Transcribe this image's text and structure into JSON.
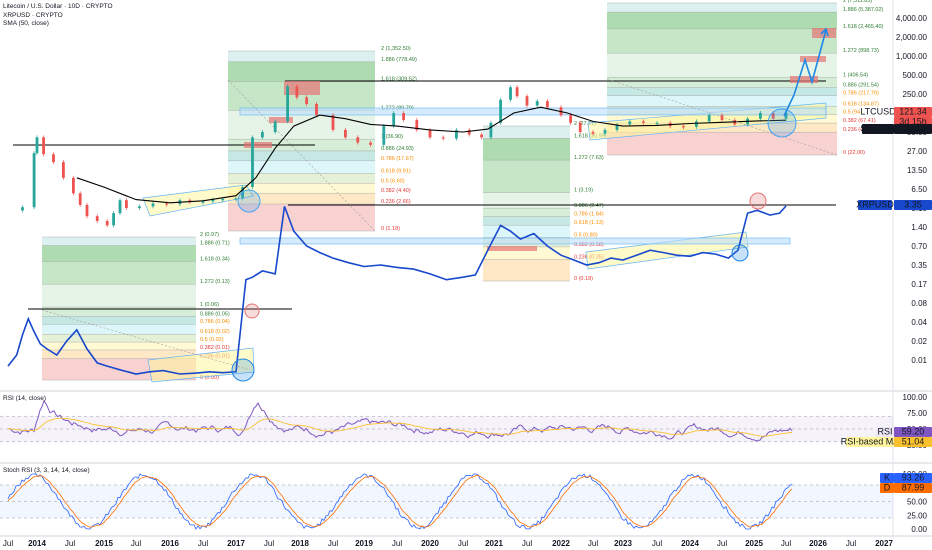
{
  "header": {
    "title": "Litecoin / U.S. Dollar · 10D · CRYPTO",
    "overlay": "XRPUSD · CRYPTO",
    "indicator": "SMA (50, close)"
  },
  "colors": {
    "ltc": "#131722",
    "xrp": "#1848cc",
    "sma": "#000000",
    "up": "#26a69a",
    "down": "#ef5350",
    "rsi": "#7e57c2",
    "stoch_k": "#2962ff",
    "stoch_d": "#ff6d00"
  },
  "chart_data": [
    {
      "type": "line",
      "name": "main-price",
      "x_ticks": [
        "Jul",
        "2014",
        "Jul",
        "2015",
        "Jul",
        "2016",
        "Jul",
        "2017",
        "Jul",
        "2018",
        "Jul",
        "2019",
        "Jul",
        "2020",
        "Jul",
        "2021",
        "Jul",
        "2022",
        "Jul",
        "2023",
        "Jul",
        "2024",
        "Jul",
        "2025",
        "Jul",
        "2026",
        "Jul",
        "2027"
      ],
      "y_ticks": [
        "4,000.00",
        "2,000.00",
        "1,000.00",
        "500.00",
        "250.00",
        "120.00",
        "55.00",
        "27.00",
        "13.50",
        "6.50",
        "3.10",
        "1.40",
        "0.70",
        "0.35",
        "0.17",
        "0.08",
        "0.04",
        "0.02",
        "0.01"
      ],
      "scale": "log",
      "series": [
        {
          "name": "LTCUSD",
          "last_label": "LTCUSD",
          "last_value": "121.34",
          "countdown": "3d 15h"
        },
        {
          "name": "SMA:MA",
          "last_label": "SMA:MA",
          "last_value": "89.32"
        },
        {
          "name": "XRPUSD",
          "last_label": "XRPUSD",
          "last_value": "3.35"
        }
      ],
      "fib_sets": [
        {
          "levels": [
            {
              "label": "2 (0.97)"
            },
            {
              "label": "1.886 (0.71)"
            },
            {
              "label": "1.618 (0.34)"
            },
            {
              "label": "1.272 (0.13)"
            },
            {
              "label": "1 (0.06)"
            },
            {
              "label": "0.886 (0.05)"
            },
            {
              "label": "0.786 (0.04)"
            },
            {
              "label": "0.618 (0.02)"
            },
            {
              "label": "0.5 (0.02)"
            },
            {
              "label": "0.382 (0.01)"
            },
            {
              "label": "0.236 (0.01)"
            },
            {
              "label": "0 (0.00)"
            }
          ]
        },
        {
          "levels": [
            {
              "label": "2 (1,352.50)"
            },
            {
              "label": "1.886 (778.49)"
            },
            {
              "label": "1.618 (309.52)"
            },
            {
              "label": "1.272 (89.79)"
            },
            {
              "label": "1 (36.90)"
            },
            {
              "label": "0.886 (24.93)"
            },
            {
              "label": "0.786 (17.67)"
            },
            {
              "label": "0.618 (9.91)"
            },
            {
              "label": "0.5 (6.60)"
            },
            {
              "label": "0.382 (4.40)"
            },
            {
              "label": "0.236 (2.66)"
            },
            {
              "label": "0 (1.18)"
            }
          ]
        },
        {
          "levels": [
            {
              "label": "2 (7,511.85)"
            },
            {
              "label": "1.886 (5,387.02)"
            },
            {
              "label": "1.618 (2,465.40)"
            },
            {
              "label": "1.272 (898.73)"
            },
            {
              "label": "1 (406.54)"
            },
            {
              "label": "0.886 (291.54)"
            },
            {
              "label": "0.786 (217.79)"
            },
            {
              "label": "0.618 (134.87)"
            },
            {
              "label": "0.5 (94.97)"
            },
            {
              "label": "0.382 (67.41)"
            },
            {
              "label": "0.236 (43.75)"
            },
            {
              "label": "0 (22.00)"
            }
          ]
        },
        {
          "levels": [
            {
              "label": "2 (27.21)"
            },
            {
              "label": "1.618 (20.99)"
            },
            {
              "label": "1.272 (7.63)"
            },
            {
              "label": "1 (3.19)"
            },
            {
              "label": "0.886 (2.47)"
            },
            {
              "label": "0.786 (1.84)"
            },
            {
              "label": "0.618 (1.13)"
            },
            {
              "label": "0.5 (0.80)"
            },
            {
              "label": "0.382 (0.58)"
            },
            {
              "label": "0.236 (0.35)"
            },
            {
              "label": "0 (0.18)"
            }
          ]
        }
      ]
    },
    {
      "type": "line",
      "name": "rsi",
      "title": "RSI (14, close)",
      "y_ticks": [
        "100.00",
        "75.00",
        "50.00",
        "25.00"
      ],
      "series": [
        {
          "name": "RSI",
          "last_value": "59.20"
        },
        {
          "name": "RSI-based MA",
          "last_value": "51.04"
        }
      ]
    },
    {
      "type": "line",
      "name": "stoch-rsi",
      "title": "Stoch RSI (3, 3, 14, 14, close)",
      "y_ticks": [
        "100.00",
        "75.00",
        "50.00",
        "25.00",
        "0.00"
      ],
      "series": [
        {
          "name": "K",
          "last_value": "93.26"
        },
        {
          "name": "D",
          "last_value": "87.99"
        }
      ]
    }
  ]
}
